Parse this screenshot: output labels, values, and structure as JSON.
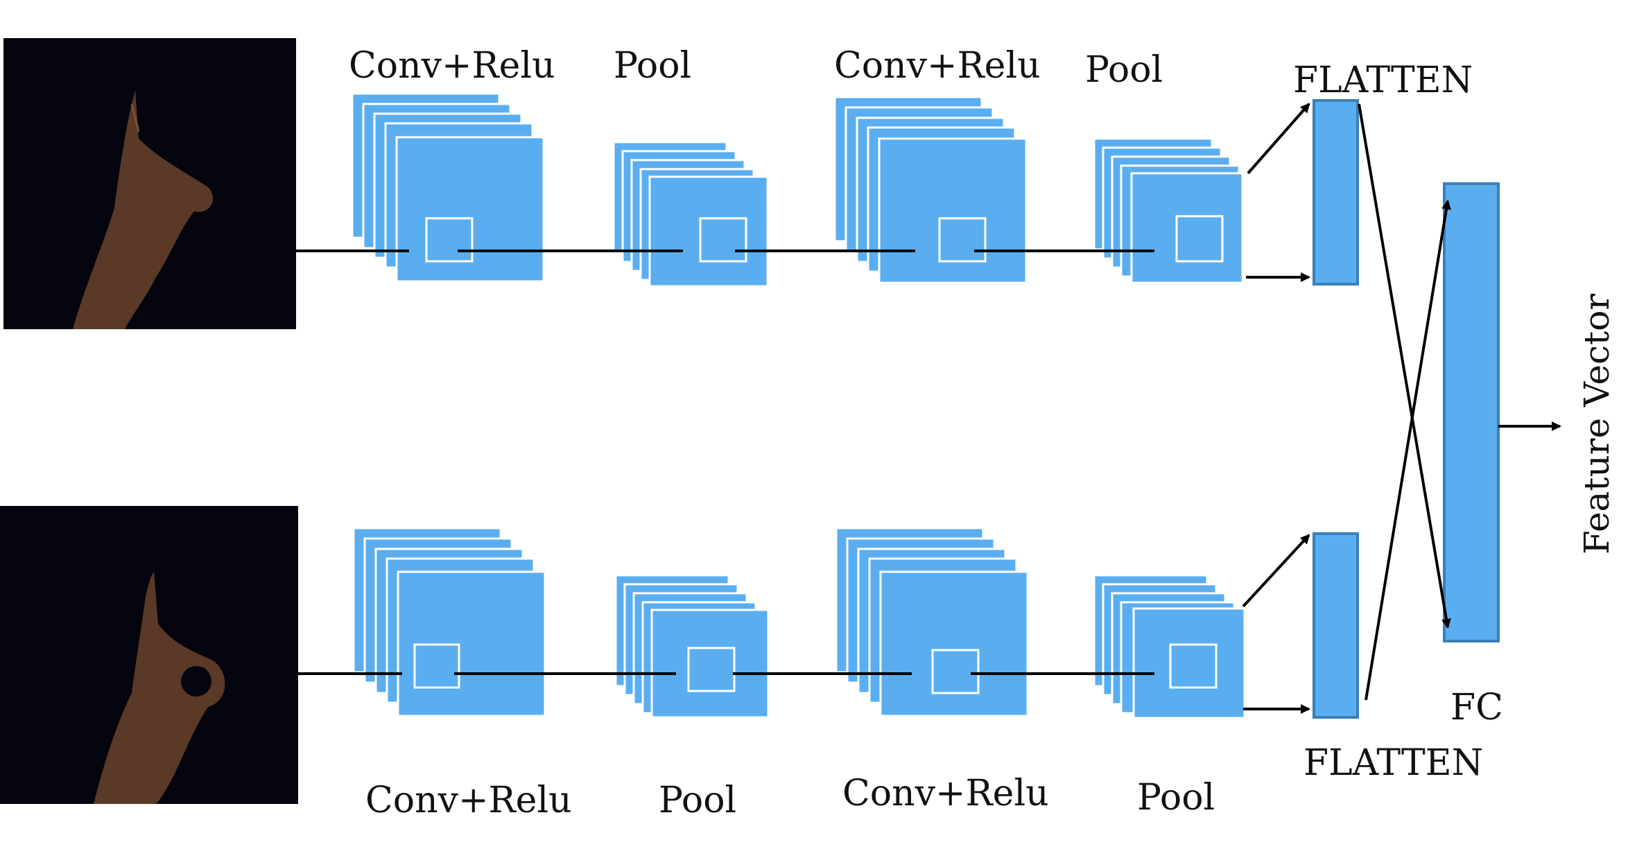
{
  "diagram": {
    "top_branch": {
      "labels": [
        "Conv+Relu",
        "Pool",
        "Conv+Relu",
        "Pool"
      ],
      "flatten_label": "FLATTEN"
    },
    "bottom_branch": {
      "labels": [
        "Conv+Relu",
        "Pool",
        "Conv+Relu",
        "Pool"
      ],
      "flatten_label": "FLATTEN"
    },
    "fc_label": "FC",
    "output_label": "Feature Vector",
    "colors": {
      "feature_map": "#5aaef0",
      "feature_map_edge": "#ffffff",
      "flatten_fill": "#5aaef0",
      "flatten_edge": "#3b7fb6",
      "input_bg": "#050510",
      "hand": "#5a3a26",
      "line": "#000000"
    },
    "icons": {
      "top_input": "hand-pointing-up-icon",
      "bottom_input": "hand-ok-sign-icon"
    }
  }
}
